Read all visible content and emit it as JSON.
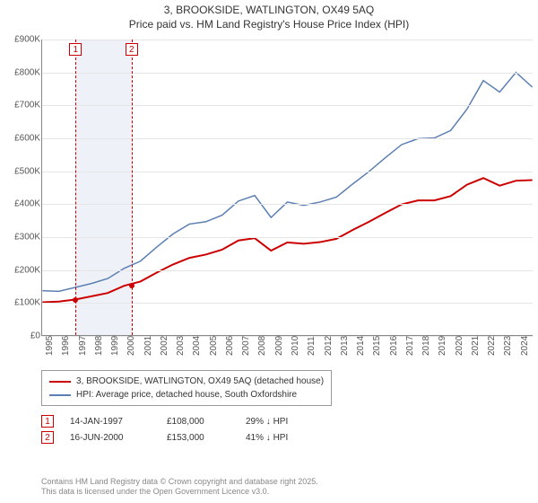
{
  "title_line1": "3, BROOKSIDE, WATLINGTON, OX49 5AQ",
  "title_line2": "Price paid vs. HM Land Registry's House Price Index (HPI)",
  "chart": {
    "type": "line",
    "background_color": "#ffffff",
    "grid_color": "#e6e6e6",
    "axis_color": "#888888",
    "label_fontsize": 10,
    "title_fontsize": 12,
    "xlim": [
      1995,
      2025
    ],
    "ylim": [
      0,
      900000
    ],
    "ytick_step": 100000,
    "ylabels": [
      "£0",
      "£100K",
      "£200K",
      "£300K",
      "£400K",
      "£500K",
      "£600K",
      "£700K",
      "£800K",
      "£900K"
    ],
    "xticks": [
      1995,
      1996,
      1997,
      1998,
      1999,
      2000,
      2001,
      2002,
      2003,
      2004,
      2005,
      2006,
      2007,
      2008,
      2009,
      2010,
      2011,
      2012,
      2013,
      2014,
      2015,
      2016,
      2017,
      2018,
      2019,
      2020,
      2021,
      2022,
      2023,
      2024
    ],
    "band": {
      "start": 1997,
      "end": 2000.5,
      "color": "#eef2f8"
    },
    "series": [
      {
        "name": "price_paid",
        "color": "#cc0000",
        "width": 2,
        "points": [
          [
            1995,
            100000
          ],
          [
            1996,
            102000
          ],
          [
            1997,
            108000
          ],
          [
            1998,
            118000
          ],
          [
            1999,
            128000
          ],
          [
            2000,
            150000
          ],
          [
            2001,
            163000
          ],
          [
            2002,
            190000
          ],
          [
            2003,
            215000
          ],
          [
            2004,
            235000
          ],
          [
            2005,
            245000
          ],
          [
            2006,
            260000
          ],
          [
            2007,
            288000
          ],
          [
            2008,
            295000
          ],
          [
            2009,
            257000
          ],
          [
            2010,
            282000
          ],
          [
            2011,
            278000
          ],
          [
            2012,
            283000
          ],
          [
            2013,
            293000
          ],
          [
            2014,
            320000
          ],
          [
            2015,
            345000
          ],
          [
            2016,
            372000
          ],
          [
            2017,
            398000
          ],
          [
            2018,
            410000
          ],
          [
            2019,
            410000
          ],
          [
            2020,
            423000
          ],
          [
            2021,
            458000
          ],
          [
            2022,
            478000
          ],
          [
            2023,
            455000
          ],
          [
            2024,
            470000
          ],
          [
            2025,
            472000
          ]
        ]
      },
      {
        "name": "hpi",
        "color": "#5b7fb3",
        "width": 1.5,
        "points": [
          [
            1995,
            135000
          ],
          [
            1996,
            133000
          ],
          [
            1997,
            145000
          ],
          [
            1998,
            157000
          ],
          [
            1999,
            172000
          ],
          [
            2000,
            203000
          ],
          [
            2001,
            225000
          ],
          [
            2002,
            268000
          ],
          [
            2003,
            308000
          ],
          [
            2004,
            338000
          ],
          [
            2005,
            345000
          ],
          [
            2006,
            365000
          ],
          [
            2007,
            408000
          ],
          [
            2008,
            425000
          ],
          [
            2009,
            358000
          ],
          [
            2010,
            405000
          ],
          [
            2011,
            395000
          ],
          [
            2012,
            405000
          ],
          [
            2013,
            420000
          ],
          [
            2014,
            460000
          ],
          [
            2015,
            498000
          ],
          [
            2016,
            540000
          ],
          [
            2017,
            580000
          ],
          [
            2018,
            598000
          ],
          [
            2019,
            600000
          ],
          [
            2020,
            623000
          ],
          [
            2021,
            688000
          ],
          [
            2022,
            775000
          ],
          [
            2023,
            740000
          ],
          [
            2024,
            800000
          ],
          [
            2025,
            755000
          ]
        ]
      }
    ],
    "markers": [
      {
        "num": "1",
        "year": 1997.04
      },
      {
        "num": "2",
        "year": 2000.46
      }
    ],
    "sales": [
      {
        "year": 1997.04,
        "price": 108000,
        "color": "#cc0000"
      },
      {
        "year": 2000.46,
        "price": 153000,
        "color": "#cc0000"
      }
    ]
  },
  "legend": {
    "series1": {
      "label": "3, BROOKSIDE, WATLINGTON, OX49 5AQ (detached house)",
      "color": "#cc0000"
    },
    "series2": {
      "label": "HPI: Average price, detached house, South Oxfordshire",
      "color": "#5b7fb3"
    }
  },
  "events": [
    {
      "num": "1",
      "date": "14-JAN-1997",
      "price": "£108,000",
      "delta": "29% ↓ HPI"
    },
    {
      "num": "2",
      "date": "16-JUN-2000",
      "price": "£153,000",
      "delta": "41% ↓ HPI"
    }
  ],
  "footnote_line1": "Contains HM Land Registry data © Crown copyright and database right 2025.",
  "footnote_line2": "This data is licensed under the Open Government Licence v3.0."
}
